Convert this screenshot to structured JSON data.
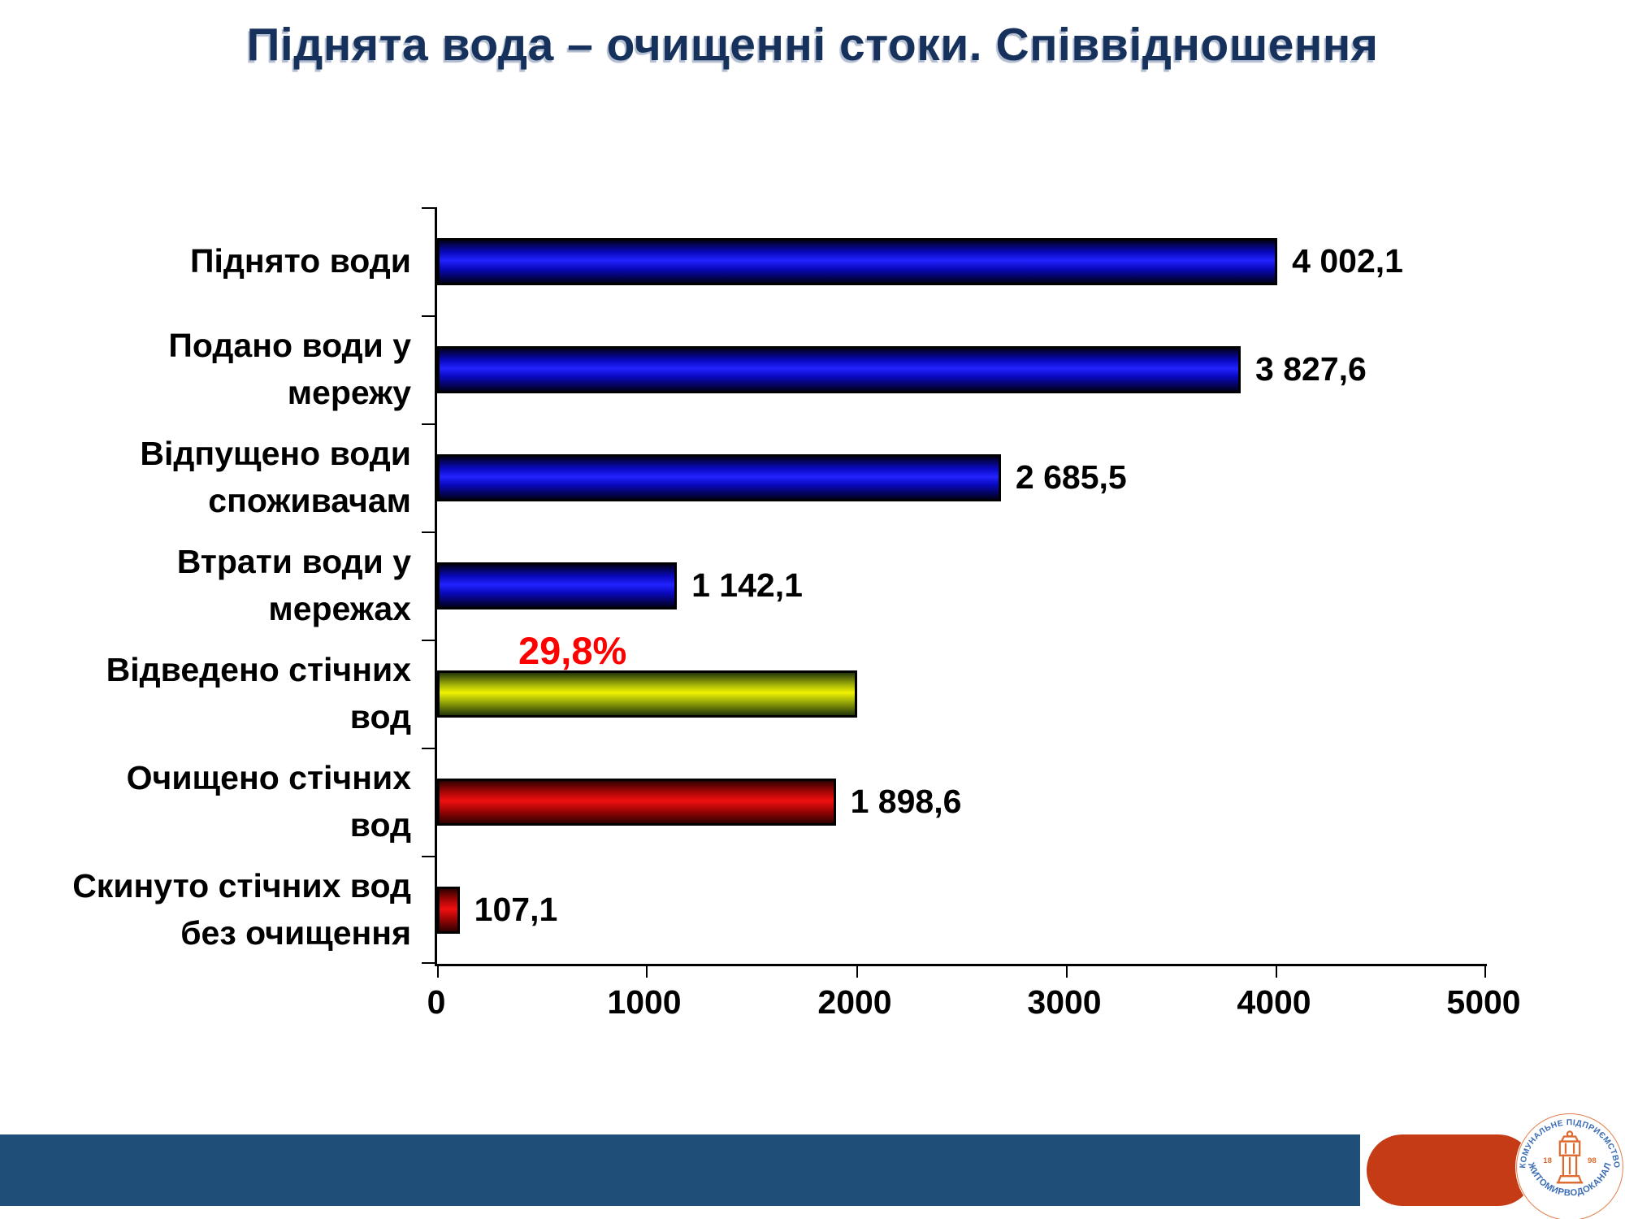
{
  "title": "Піднята вода – очищенні стоки. Співвідношення",
  "title_color": "#16325C",
  "chart_data": {
    "type": "bar",
    "orientation": "horizontal",
    "xlim": [
      0,
      5000
    ],
    "x_tick_labels": [
      "0",
      "1000",
      "2000",
      "3000",
      "4000",
      "5000"
    ],
    "grid": false,
    "legend": "none",
    "categories": [
      "Піднято води",
      "Подано води у мережу",
      "Відпущено води споживачам",
      "Втрати води у мережах",
      "Відведено стічних вод",
      "Очищено стічних вод",
      "Скинуто стічних вод без очищення"
    ],
    "rows": [
      {
        "label": "Піднято води",
        "value": 4002.1,
        "value_label": "4 002,1",
        "color": "blue"
      },
      {
        "label": "Подано води у мережу",
        "value": 3827.6,
        "value_label": "3 827,6",
        "color": "blue"
      },
      {
        "label": "Відпущено води споживачам",
        "value": 2685.5,
        "value_label": "2 685,5",
        "color": "blue"
      },
      {
        "label": "Втрати води у мережах",
        "value": 1142.1,
        "value_label": "1 142,1",
        "color": "blue"
      },
      {
        "label": "Відведено стічних вод",
        "value": 2000,
        "value_label": "",
        "color": "yellow",
        "annotation": "29,8%"
      },
      {
        "label": "Очищено стічних вод",
        "value": 1898.6,
        "value_label": "1 898,6",
        "color": "red"
      },
      {
        "label": "Скинуто стічних вод без очищення",
        "value": 107.1,
        "value_label": "107,1",
        "color": "red"
      }
    ],
    "annotation_color": "#FF0000",
    "palette": {
      "blue": {
        "dark": "#01001d",
        "mid": "#0909c0",
        "bright": "#2323ff"
      },
      "yellow": {
        "dark": "#23370a",
        "mid": "#a3b207",
        "bright": "#f0f202"
      },
      "red": {
        "dark": "#310000",
        "mid": "#b00606",
        "bright": "#f01010"
      }
    }
  },
  "footer": {
    "band_color": "#1F4E79",
    "capsule_color": "#C43B15",
    "logo": {
      "arc_top_text": "КОМУНАЛЬНЕ ПІДПРИЄМСТВО",
      "arc_bottom_text": "ЖИТОМИРВОДОКАНАЛ",
      "year_left": "18",
      "year_right": "98",
      "orange": "#DD6B2F",
      "blue": "#3B6CB4"
    }
  }
}
